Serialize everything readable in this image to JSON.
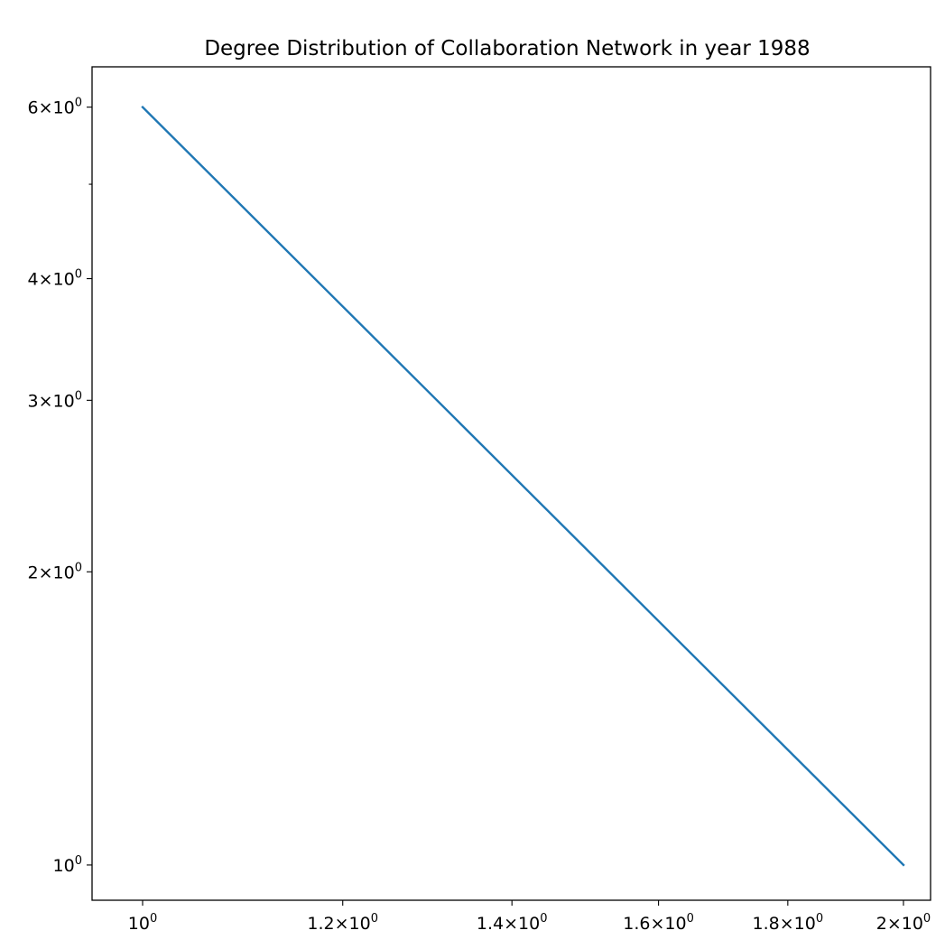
{
  "chart_data": {
    "type": "line",
    "title": "Degree Distribution of Collaboration Network in year 1988",
    "xlabel": "",
    "ylabel": "",
    "xscale": "log",
    "yscale": "log",
    "xlim": [
      0.955,
      2.05
    ],
    "ylim": [
      0.92,
      6.6
    ],
    "grid": false,
    "series": [
      {
        "x": [
          1,
          2
        ],
        "y": [
          6,
          1
        ],
        "color": "#1f77b4"
      }
    ],
    "x_ticks": [
      {
        "value": 1.0,
        "base": "10",
        "exp": "0"
      },
      {
        "value": 1.2,
        "base": "1.2×10",
        "exp": "0"
      },
      {
        "value": 1.4,
        "base": "1.4×10",
        "exp": "0"
      },
      {
        "value": 1.6,
        "base": "1.6×10",
        "exp": "0"
      },
      {
        "value": 1.8,
        "base": "1.8×10",
        "exp": "0"
      },
      {
        "value": 2.0,
        "base": "2×10",
        "exp": "0"
      }
    ],
    "y_ticks": [
      {
        "value": 1,
        "base": "10",
        "exp": "0"
      },
      {
        "value": 2,
        "base": "2×10",
        "exp": "0"
      },
      {
        "value": 3,
        "base": "3×10",
        "exp": "0"
      },
      {
        "value": 4,
        "base": "4×10",
        "exp": "0"
      },
      {
        "value": 6,
        "base": "6×10",
        "exp": "0"
      }
    ],
    "y_minor_ticks": [
      5
    ]
  }
}
